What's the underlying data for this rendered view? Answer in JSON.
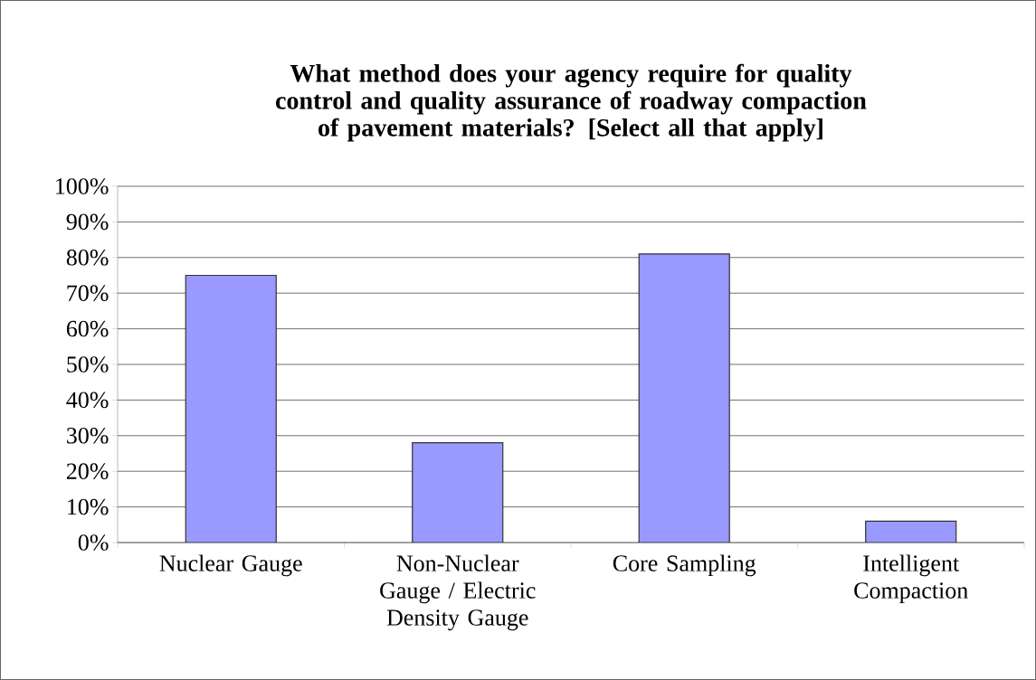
{
  "chart_data": {
    "type": "bar",
    "title": "What method does your agency require for quality control and quality assurance of roadway compaction of pavement materials? [Select all that apply]",
    "categories": [
      "Nuclear Gauge",
      "Non-Nuclear Gauge / Electric Density Gauge",
      "Core Sampling",
      "Intelligent Compaction"
    ],
    "values": [
      75,
      28,
      81,
      6
    ],
    "color": "#9999ff",
    "ylim": [
      0,
      100
    ],
    "yticks": [
      {
        "value": 0,
        "label": "0%"
      },
      {
        "value": 10,
        "label": "10%"
      },
      {
        "value": 20,
        "label": "20%"
      },
      {
        "value": 30,
        "label": "30%"
      },
      {
        "value": 40,
        "label": "40%"
      },
      {
        "value": 50,
        "label": "50%"
      },
      {
        "value": 60,
        "label": "60%"
      },
      {
        "value": 70,
        "label": "70%"
      },
      {
        "value": 80,
        "label": "80%"
      },
      {
        "value": 90,
        "label": "90%"
      },
      {
        "value": 100,
        "label": "100%"
      }
    ],
    "grid": "y"
  }
}
